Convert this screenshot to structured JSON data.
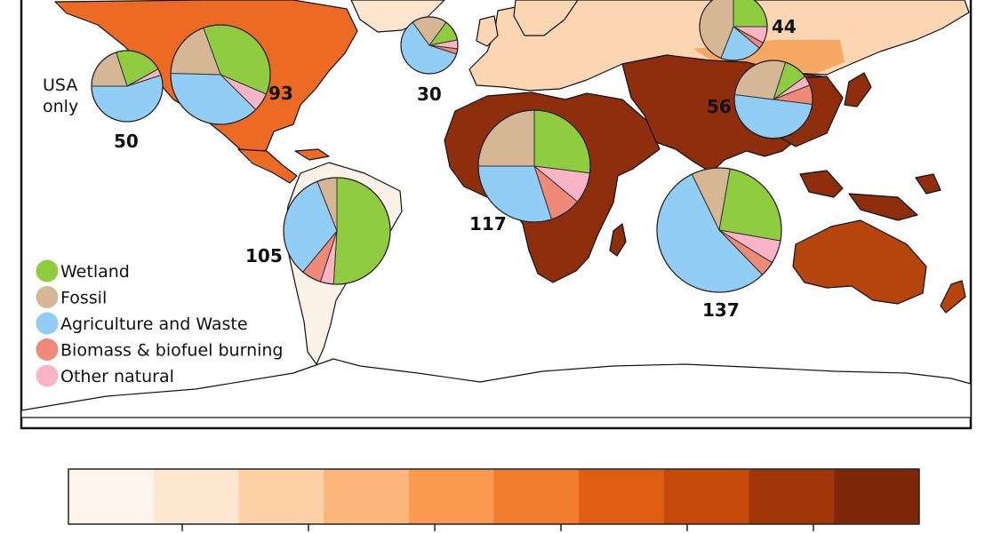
{
  "categories": [
    {
      "key": "wetland",
      "label": "Wetland",
      "color": "#8fcc3f"
    },
    {
      "key": "fossil",
      "label": "Fossil",
      "color": "#d5b796"
    },
    {
      "key": "agriculture",
      "label": "Agriculture and Waste",
      "color": "#92cdf6"
    },
    {
      "key": "biomass",
      "label": "Biomass & biofuel burning",
      "color": "#f08a78"
    },
    {
      "key": "other",
      "label": "Other natural",
      "color": "#f9b5c6"
    }
  ],
  "regions": [
    {
      "name": "usa",
      "value": "50",
      "note_lines": [
        "USA",
        "only"
      ],
      "shares": {
        "wetland": 0.22,
        "fossil": 0.2,
        "agriculture": 0.55,
        "biomass": 0.0,
        "other": 0.03
      }
    },
    {
      "name": "north-america",
      "value": "93",
      "shares": {
        "wetland": 0.37,
        "fossil": 0.19,
        "agriculture": 0.38,
        "biomass": 0.0,
        "other": 0.06
      }
    },
    {
      "name": "europe",
      "value": "30",
      "shares": {
        "wetland": 0.12,
        "fossil": 0.2,
        "agriculture": 0.6,
        "biomass": 0.03,
        "other": 0.05
      }
    },
    {
      "name": "russia",
      "value": "44",
      "shares": {
        "wetland": 0.25,
        "fossil": 0.44,
        "agriculture": 0.2,
        "biomass": 0.03,
        "other": 0.08
      }
    },
    {
      "name": "east-asia",
      "value": "56",
      "shares": {
        "wetland": 0.1,
        "fossil": 0.28,
        "agriculture": 0.5,
        "biomass": 0.08,
        "other": 0.04
      }
    },
    {
      "name": "africa",
      "value": "117",
      "shares": {
        "wetland": 0.27,
        "fossil": 0.25,
        "agriculture": 0.3,
        "biomass": 0.09,
        "other": 0.09
      }
    },
    {
      "name": "south-asia",
      "value": "137",
      "shares": {
        "wetland": 0.25,
        "fossil": 0.1,
        "agriculture": 0.55,
        "biomass": 0.04,
        "other": 0.06
      }
    },
    {
      "name": "south-america",
      "value": "105",
      "shares": {
        "wetland": 0.51,
        "fossil": 0.06,
        "agriculture": 0.33,
        "biomass": 0.06,
        "other": 0.04
      }
    }
  ],
  "colorbar": [
    "#fef4eb",
    "#fee7d1",
    "#fdd0a6",
    "#fcb67b",
    "#f99a4f",
    "#f07c2e",
    "#df5e12",
    "#c54a0a",
    "#a13609",
    "#7f2709"
  ],
  "map_colors": {
    "ocean": "#ffffff",
    "antarctica": "#ffffff",
    "coast": "#111111"
  }
}
